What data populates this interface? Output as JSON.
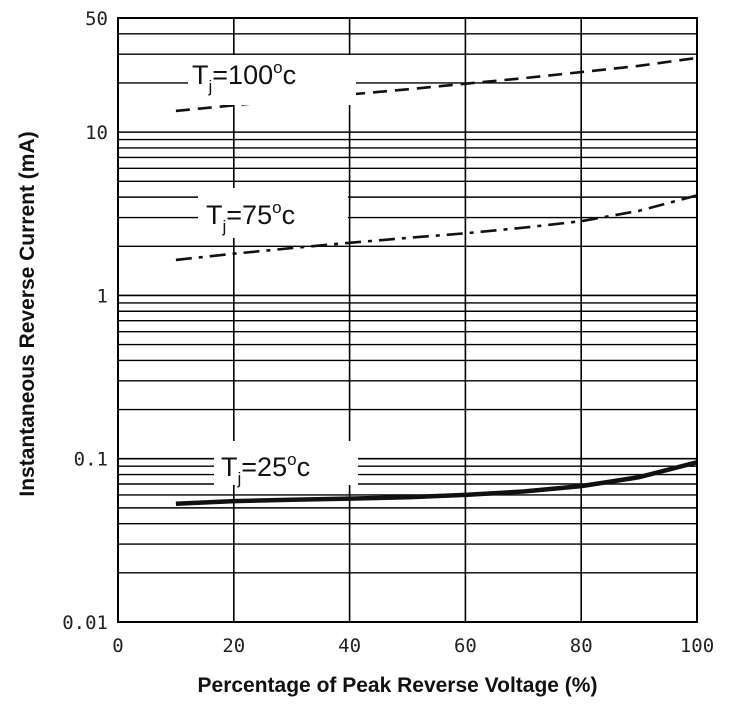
{
  "chart_data": {
    "type": "line",
    "title": "",
    "xlabel": "Percentage of Peak Reverse Voltage (%)",
    "ylabel": "Instantaneous Reverse Current (mA)",
    "xlim": [
      0,
      100
    ],
    "ylim": [
      0.01,
      50
    ],
    "yscale": "log",
    "grid": true,
    "x_ticks": [
      0,
      20,
      40,
      60,
      80,
      100
    ],
    "y_tick_labels": [
      {
        "value": 50,
        "label": "50"
      },
      {
        "value": 10,
        "label": "10"
      },
      {
        "value": 1,
        "label": "1"
      },
      {
        "value": 0.1,
        "label": "0.1"
      },
      {
        "value": 0.01,
        "label": "0.01"
      }
    ],
    "series": [
      {
        "name": "Tj=100°c",
        "label": {
          "main": "T",
          "sub": "j",
          "eq": "=100",
          "sup": "o",
          "unit": "c"
        },
        "style": "dashed",
        "x": [
          10,
          20,
          30,
          40,
          50,
          60,
          70,
          80,
          90,
          100
        ],
        "y": [
          13.5,
          14.6,
          15.8,
          17.0,
          18.3,
          19.8,
          21.4,
          23.3,
          25.5,
          28.5
        ]
      },
      {
        "name": "Tj=75°c",
        "label": {
          "main": "T",
          "sub": "j",
          "eq": "=75",
          "sup": "o",
          "unit": "c"
        },
        "style": "dashdot",
        "x": [
          10,
          20,
          30,
          40,
          50,
          60,
          70,
          80,
          90,
          100
        ],
        "y": [
          1.65,
          1.8,
          1.95,
          2.1,
          2.25,
          2.4,
          2.6,
          2.85,
          3.3,
          4.1
        ]
      },
      {
        "name": "Tj=25°c",
        "label": {
          "main": "T",
          "sub": "j",
          "eq": "=25",
          "sup": "o",
          "unit": "c"
        },
        "style": "solid",
        "x": [
          10,
          20,
          30,
          40,
          50,
          60,
          70,
          80,
          90,
          100
        ],
        "y": [
          0.053,
          0.055,
          0.056,
          0.057,
          0.058,
          0.06,
          0.063,
          0.068,
          0.077,
          0.095
        ]
      }
    ]
  },
  "colors": {
    "line": "#111111",
    "grid": "#000000",
    "background": "#ffffff"
  }
}
